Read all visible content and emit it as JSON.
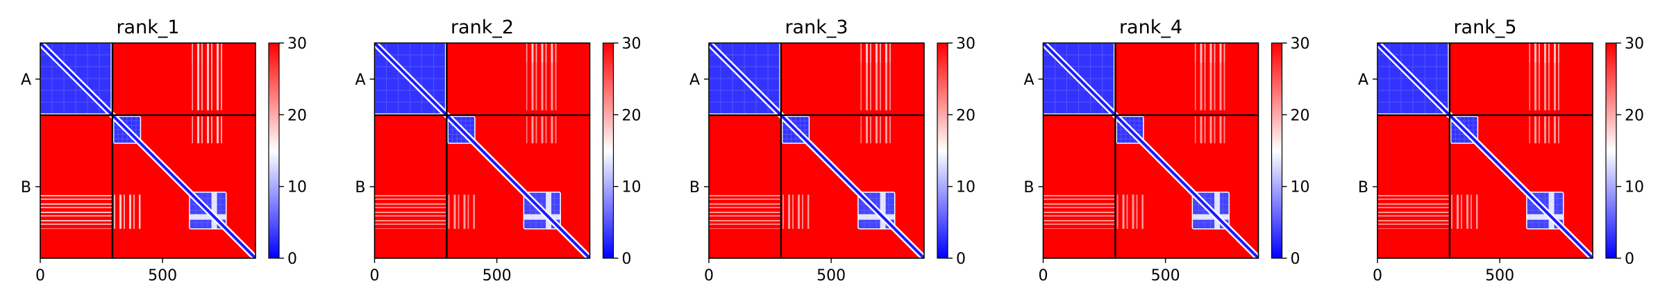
{
  "chart_data": {
    "type": "heatmap",
    "subtype": "PAE matrix",
    "colormap": {
      "name": "bwr",
      "low": "#0000ff",
      "mid": "#ffffff",
      "high": "#ff0000"
    },
    "colorbar": {
      "min": 0,
      "max": 30,
      "ticks": [
        "0",
        "10",
        "20",
        "30"
      ]
    },
    "xlim": [
      0,
      880
    ],
    "x_ticks": [
      "0",
      "500"
    ],
    "chains": [
      {
        "label": "A",
        "start": 0,
        "end": 295
      },
      {
        "label": "B",
        "start": 295,
        "end": 880
      }
    ],
    "panels": [
      {
        "title": "rank_1"
      },
      {
        "title": "rank_2"
      },
      {
        "title": "rank_3"
      },
      {
        "title": "rank_4"
      },
      {
        "title": "rank_5"
      }
    ],
    "domains_low_error": [
      {
        "chain": "A",
        "from": 0,
        "to": 290,
        "value": 3
      },
      {
        "chain": "B",
        "from": 300,
        "to": 410,
        "value": 3
      },
      {
        "chain": "B",
        "from": 610,
        "to": 760,
        "value": 4
      }
    ],
    "background_value": 30,
    "grid": false
  }
}
